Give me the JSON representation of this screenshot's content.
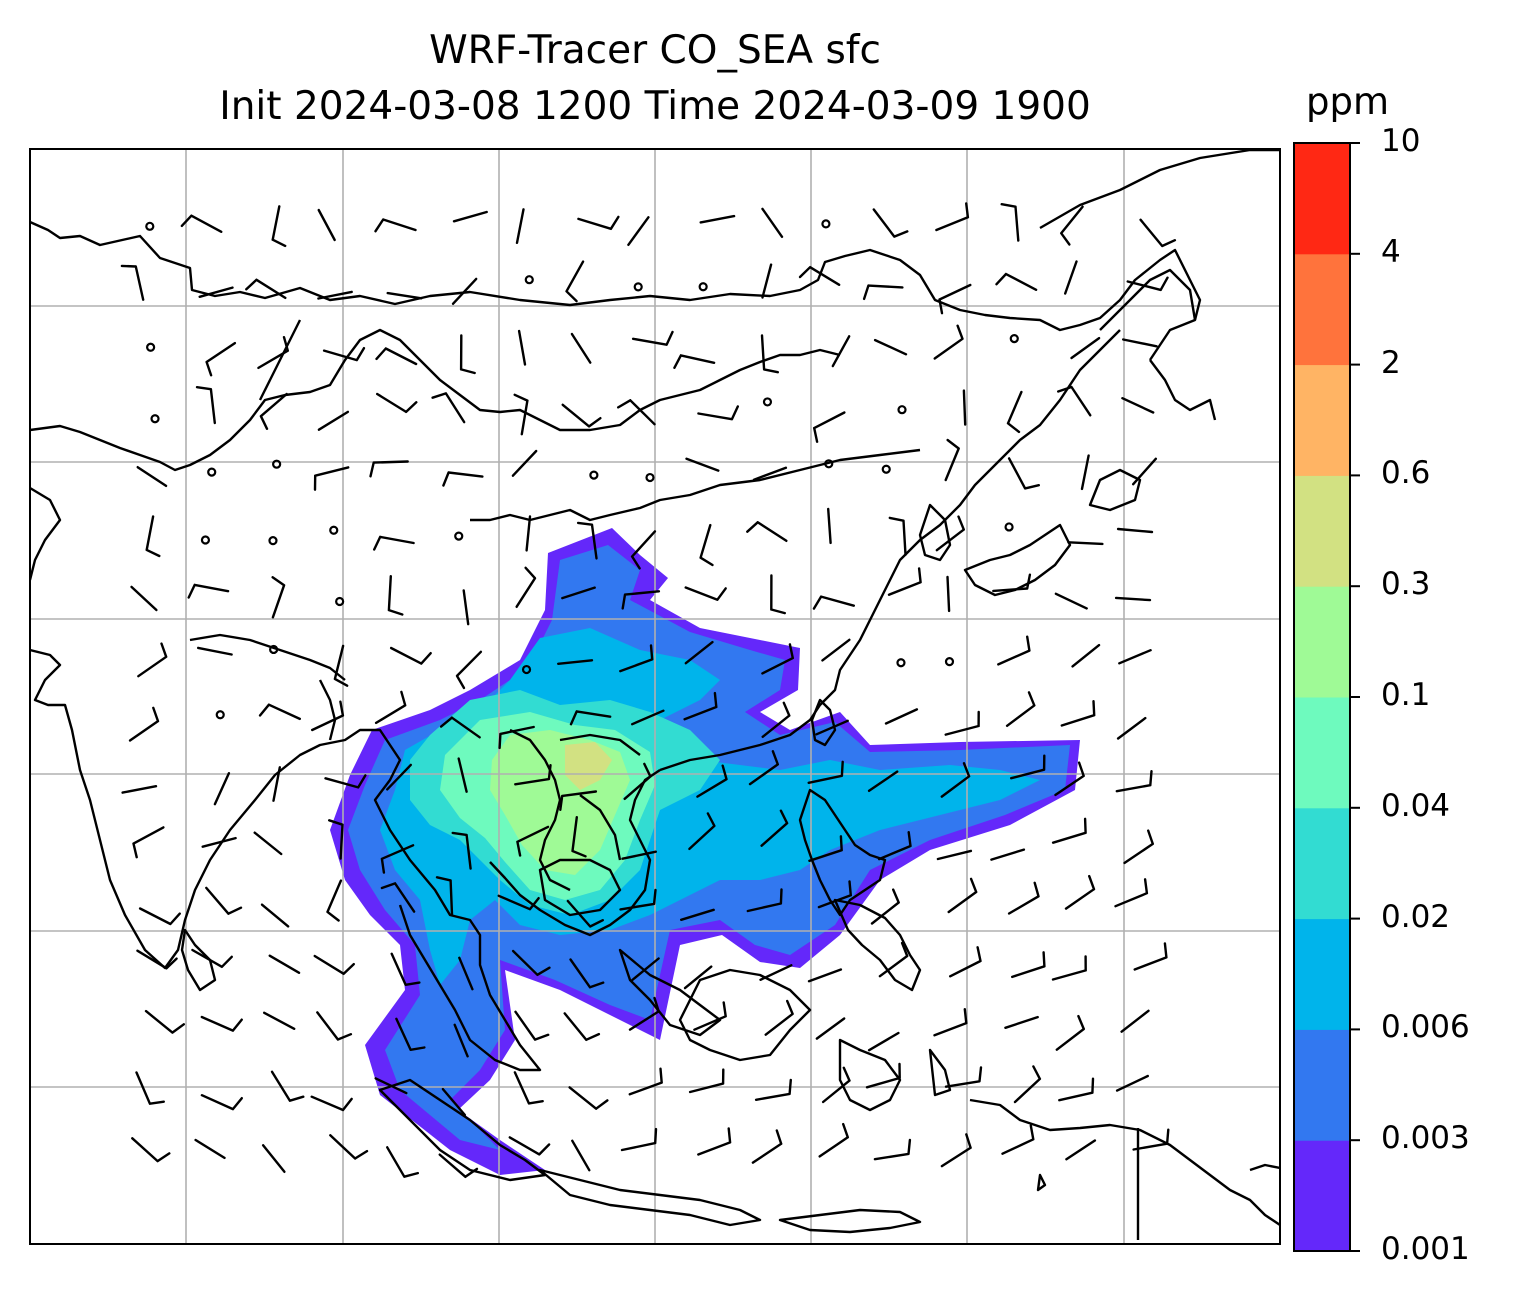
{
  "title": {
    "line1": "WRF-Tracer CO_SEA sfc",
    "line2": "Init 2024-03-08 1200 Time 2024-03-09 1900"
  },
  "colorbar": {
    "unit": "ppm",
    "levels": [
      "0.001",
      "0.003",
      "0.006",
      "0.02",
      "0.04",
      "0.1",
      "0.3",
      "0.6",
      "2",
      "4",
      "10"
    ],
    "colors": [
      "#6428fa",
      "#3278f0",
      "#00b4eb",
      "#32dcd2",
      "#6efabe",
      "#9ffa96",
      "#d2e182",
      "#ffb464",
      "#ff733c",
      "#ff2814"
    ]
  },
  "map": {
    "region": "Southeast Asia / East Asia",
    "grid": true,
    "coastlines": true,
    "wind_barbs": true,
    "plume_colors": {
      "level1": "#6428fa",
      "level2": "#3278f0",
      "level3": "#00b4eb",
      "level4": "#32dcd2",
      "level5": "#6efabe",
      "level6": "#9ffa96",
      "level7": "#d2e182"
    }
  }
}
